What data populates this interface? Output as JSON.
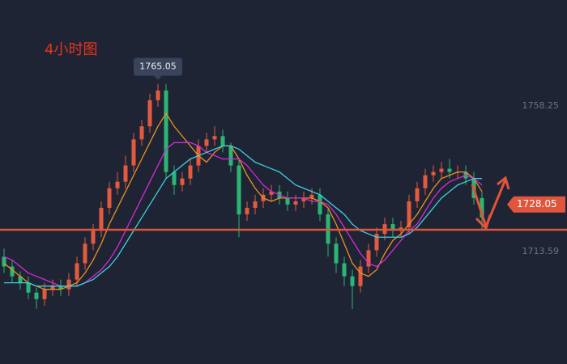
{
  "chart_data": {
    "type": "candlestick",
    "title": "4小时图",
    "ylim": [
      1679.1,
      1790.75
    ],
    "yticks": [
      1713.59,
      1758.25
    ],
    "up_color": "#e35a3f",
    "down_color": "#2bb673",
    "open": [
      1712,
      1709,
      1706,
      1704,
      1701,
      1699,
      1702,
      1703,
      1702,
      1705,
      1710,
      1716,
      1720,
      1727,
      1733,
      1735,
      1740,
      1748,
      1752,
      1760,
      1763,
      1738,
      1734,
      1736,
      1740,
      1746,
      1748,
      1749,
      1746,
      1740,
      1725,
      1727,
      1729,
      1731,
      1732,
      1730,
      1728,
      1729,
      1730,
      1731,
      1725,
      1716,
      1710,
      1706,
      1703,
      1709,
      1714,
      1719,
      1722,
      1720,
      1721,
      1729,
      1733,
      1737,
      1738,
      1739,
      1738,
      1738,
      1736,
      1730
    ],
    "high": [
      1714.5,
      1711,
      1707.5,
      1706,
      1702.5,
      1704,
      1705,
      1705,
      1707,
      1712,
      1718,
      1722,
      1729,
      1735,
      1738,
      1743,
      1750,
      1754,
      1762,
      1765.05,
      1765,
      1740,
      1738,
      1742,
      1748,
      1750,
      1752,
      1751,
      1747,
      1742,
      1729,
      1731,
      1733,
      1734,
      1734,
      1732,
      1731,
      1732,
      1733,
      1733,
      1727,
      1718,
      1712,
      1708,
      1711,
      1716,
      1721,
      1724,
      1724,
      1723,
      1731,
      1735,
      1739,
      1740,
      1741,
      1742,
      1740,
      1740,
      1738,
      1732
    ],
    "low": [
      1707,
      1704,
      1702,
      1699,
      1696,
      1697,
      1700,
      1700,
      1700,
      1703,
      1708,
      1714,
      1718,
      1725,
      1731,
      1733,
      1738,
      1746,
      1750,
      1758,
      1736,
      1731,
      1732,
      1734,
      1738,
      1744,
      1746,
      1744,
      1738,
      1718,
      1723,
      1725,
      1727,
      1729,
      1728,
      1726,
      1726,
      1727,
      1728,
      1723,
      1712,
      1707,
      1703,
      1696,
      1701,
      1707,
      1712,
      1717,
      1718,
      1718,
      1719,
      1727,
      1731,
      1735,
      1736,
      1736,
      1736,
      1734,
      1728,
      1720
    ],
    "close": [
      1709,
      1706,
      1704,
      1701,
      1699,
      1702,
      1703,
      1702,
      1705,
      1710,
      1716,
      1720,
      1727,
      1733,
      1735,
      1740,
      1748,
      1752,
      1760,
      1763,
      1738,
      1734,
      1736,
      1740,
      1746,
      1748,
      1749,
      1746,
      1740,
      1725,
      1727,
      1729,
      1731,
      1732,
      1730,
      1728,
      1729,
      1730,
      1731,
      1725,
      1716,
      1710,
      1706,
      1703,
      1709,
      1714,
      1719,
      1722,
      1720,
      1721,
      1729,
      1733,
      1737,
      1738,
      1739,
      1738,
      1738,
      1736,
      1730,
      1724
    ],
    "series": [
      {
        "color": "#f0901e",
        "values": [
          1710,
          1708,
          1706,
          1704,
          1703,
          1702,
          1702,
          1702,
          1703,
          1704,
          1707,
          1711,
          1716,
          1722,
          1727,
          1732,
          1737,
          1742,
          1747,
          1752,
          1756,
          1752,
          1749,
          1746,
          1743,
          1741,
          1744,
          1746,
          1746,
          1742,
          1737,
          1733,
          1730,
          1729,
          1730,
          1730,
          1730,
          1730,
          1730,
          1729,
          1727,
          1722,
          1716,
          1710,
          1707,
          1706,
          1708,
          1713,
          1717,
          1719,
          1722,
          1725,
          1729,
          1733,
          1736,
          1737,
          1738,
          1738,
          1736,
          1732
        ]
      },
      {
        "color": "#d62ad6",
        "values": [
          1712,
          1711,
          1709,
          1707,
          1706,
          1705,
          1704,
          1703,
          1703,
          1703,
          1704,
          1706,
          1708,
          1711,
          1715,
          1720,
          1725,
          1730,
          1735,
          1740,
          1745,
          1747,
          1747,
          1747,
          1746,
          1744,
          1743,
          1742,
          1742,
          1742,
          1740,
          1737,
          1734,
          1732,
          1731,
          1730,
          1730,
          1730,
          1729,
          1729,
          1728,
          1725,
          1721,
          1717,
          1713,
          1710,
          1709,
          1711,
          1714,
          1717,
          1720,
          1722,
          1726,
          1730,
          1733,
          1735,
          1736,
          1737,
          1736,
          1734
        ]
      },
      {
        "color": "#3fd0e0",
        "values": [
          1704,
          1704,
          1704,
          1704,
          1703,
          1703,
          1703,
          1703,
          1703,
          1703,
          1704,
          1705,
          1707,
          1709,
          1712,
          1716,
          1720,
          1724,
          1728,
          1732,
          1736,
          1738,
          1740,
          1742,
          1743,
          1744,
          1745,
          1746,
          1746,
          1745,
          1743,
          1741,
          1740,
          1739,
          1738,
          1736,
          1734,
          1733,
          1732,
          1731,
          1729,
          1727,
          1725,
          1722,
          1720,
          1719,
          1718,
          1718,
          1718,
          1718,
          1719,
          1721,
          1724,
          1727,
          1730,
          1732,
          1734,
          1735,
          1736,
          1736
        ]
      }
    ],
    "support_line": 1720.3,
    "line_color": "#e0553c",
    "last_price": 1728.05,
    "high_price": 1765.05
  }
}
